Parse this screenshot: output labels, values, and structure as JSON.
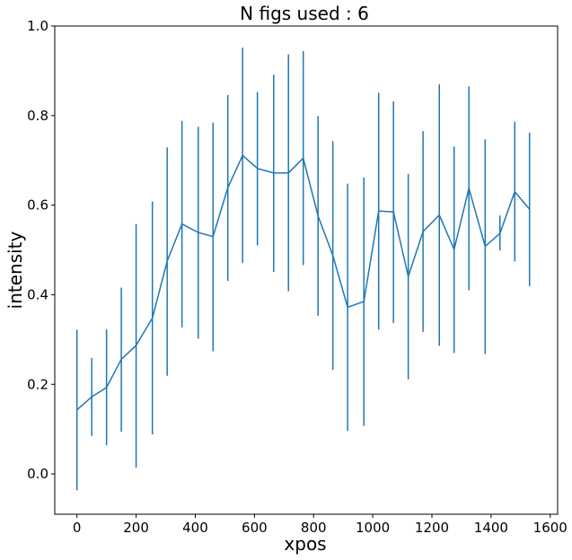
{
  "chart_data": {
    "type": "line",
    "title": "N figs used : 6",
    "xlabel": "xpos",
    "ylabel": "intensity",
    "xlim": [
      -75,
      1625
    ],
    "ylim": [
      -0.09,
      1.0
    ],
    "xticks": [
      0,
      200,
      400,
      600,
      800,
      1000,
      1200,
      1400,
      1600
    ],
    "yticks": [
      0.0,
      0.2,
      0.4,
      0.6,
      0.8,
      1.0
    ],
    "xtick_labels": [
      "0",
      "200",
      "400",
      "600",
      "800",
      "1000",
      "1200",
      "1400",
      "1600"
    ],
    "ytick_labels": [
      "0.0",
      "0.2",
      "0.4",
      "0.6",
      "0.8",
      "1.0"
    ],
    "grid": false,
    "color": "#1f77b4",
    "series": [
      {
        "x": [
          0,
          50,
          100,
          150,
          200,
          255,
          305,
          355,
          410,
          460,
          510,
          560,
          610,
          665,
          715,
          765,
          815,
          865,
          915,
          970,
          1020,
          1070,
          1120,
          1170,
          1225,
          1275,
          1325,
          1380,
          1430,
          1480,
          1530
        ],
        "y": [
          0.143,
          0.172,
          0.193,
          0.256,
          0.287,
          0.348,
          0.475,
          0.558,
          0.539,
          0.53,
          0.639,
          0.711,
          0.682,
          0.672,
          0.672,
          0.705,
          0.576,
          0.488,
          0.372,
          0.385,
          0.587,
          0.585,
          0.441,
          0.541,
          0.578,
          0.501,
          0.638,
          0.508,
          0.537,
          0.63,
          0.591
        ],
        "err_low": [
          -0.037,
          0.085,
          0.064,
          0.094,
          0.014,
          0.088,
          0.219,
          0.327,
          0.302,
          0.274,
          0.431,
          0.471,
          0.51,
          0.451,
          0.408,
          0.466,
          0.353,
          0.232,
          0.096,
          0.107,
          0.322,
          0.337,
          0.211,
          0.317,
          0.286,
          0.27,
          0.41,
          0.268,
          0.499,
          0.474,
          0.419
        ],
        "err_high": [
          0.322,
          0.259,
          0.323,
          0.416,
          0.558,
          0.608,
          0.729,
          0.788,
          0.775,
          0.784,
          0.846,
          0.952,
          0.853,
          0.891,
          0.937,
          0.944,
          0.799,
          0.743,
          0.648,
          0.662,
          0.851,
          0.832,
          0.67,
          0.765,
          0.87,
          0.731,
          0.865,
          0.747,
          0.577,
          0.786,
          0.762
        ]
      }
    ]
  }
}
